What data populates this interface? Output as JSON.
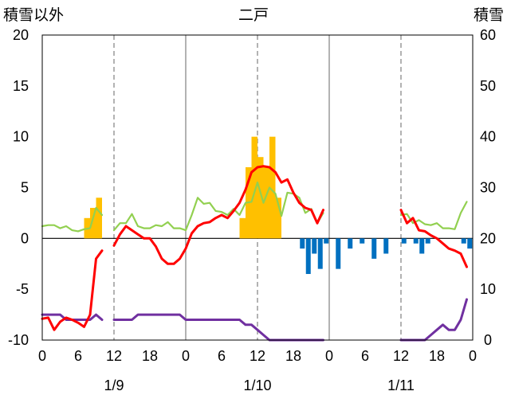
{
  "chart_data": {
    "type": "bar+line",
    "title": "二戸",
    "ylabel_left": "積雪以外",
    "ylabel_right": "積雪",
    "ylim_left": [
      -10,
      20
    ],
    "ylim_right": [
      0,
      60
    ],
    "yticks_left": [
      "20",
      "15",
      "10",
      "5",
      "0",
      "-5",
      "-10"
    ],
    "yticks_right": [
      "60",
      "50",
      "40",
      "30",
      "20",
      "10",
      "0"
    ],
    "x_range_hours": [
      0,
      72
    ],
    "x_ticks": [
      {
        "h": 0,
        "label": "0"
      },
      {
        "h": 6,
        "label": "6"
      },
      {
        "h": 12,
        "label": "12"
      },
      {
        "h": 18,
        "label": "18"
      },
      {
        "h": 24,
        "label": "0"
      },
      {
        "h": 30,
        "label": "6"
      },
      {
        "h": 36,
        "label": "12"
      },
      {
        "h": 42,
        "label": "18"
      },
      {
        "h": 48,
        "label": "0"
      },
      {
        "h": 54,
        "label": "6"
      },
      {
        "h": 60,
        "label": "12"
      },
      {
        "h": 66,
        "label": "18"
      },
      {
        "h": 72,
        "label": "0"
      }
    ],
    "date_labels": [
      {
        "h": 12,
        "label": "1/9"
      },
      {
        "h": 36,
        "label": "1/10"
      },
      {
        "h": 60,
        "label": "1/11"
      }
    ],
    "colors": {
      "precip_bars": "#FFC000",
      "snow_change_bars": "#0070C0",
      "temperature": "#FF0000",
      "snow_depth": "#92D050",
      "wind_line": "#7030A0"
    },
    "precip_bars": [
      [
        7.5,
        2
      ],
      [
        8.5,
        3
      ],
      [
        9.5,
        4
      ],
      [
        33.5,
        2
      ],
      [
        34.5,
        7
      ],
      [
        35.5,
        10
      ],
      [
        36.5,
        8
      ],
      [
        37.5,
        7
      ],
      [
        38.5,
        10
      ],
      [
        39.5,
        4
      ]
    ],
    "snow_change_bars": [
      [
        43.5,
        -1
      ],
      [
        44.5,
        -3.5
      ],
      [
        45.5,
        -1.5
      ],
      [
        46.5,
        -3
      ],
      [
        47.5,
        -0.5
      ],
      [
        49.5,
        -3
      ],
      [
        51.5,
        -1
      ],
      [
        53.5,
        -0.5
      ],
      [
        55.5,
        -2
      ],
      [
        57.5,
        -1.5
      ],
      [
        60.5,
        -0.5
      ],
      [
        62.5,
        -0.5
      ],
      [
        63.5,
        -1.5
      ],
      [
        64.5,
        -0.5
      ],
      [
        70.5,
        -0.5
      ],
      [
        71.5,
        -1
      ]
    ],
    "snow_depth_series": [
      [
        [
          0,
          1.2
        ],
        [
          1,
          1.3
        ],
        [
          2,
          1.3
        ],
        [
          3,
          1.0
        ],
        [
          4,
          1.2
        ],
        [
          5,
          0.8
        ],
        [
          6,
          0.7
        ],
        [
          7,
          0.9
        ],
        [
          8,
          1.0
        ],
        [
          9,
          3.0
        ],
        [
          10,
          2.3
        ]
      ],
      [
        [
          12,
          0.8
        ],
        [
          13,
          1.5
        ],
        [
          14,
          1.5
        ],
        [
          15,
          2.4
        ],
        [
          16,
          1.2
        ],
        [
          17,
          1.0
        ],
        [
          18,
          1.0
        ],
        [
          19,
          1.3
        ],
        [
          20,
          1.2
        ],
        [
          21,
          1.6
        ],
        [
          22,
          1.0
        ],
        [
          23,
          1.0
        ],
        [
          24,
          0.8
        ],
        [
          25,
          2.3
        ],
        [
          26,
          4.0
        ],
        [
          27,
          3.4
        ],
        [
          28,
          3.5
        ],
        [
          29,
          2.7
        ],
        [
          30,
          2.6
        ],
        [
          31,
          2.3
        ],
        [
          32,
          2.9
        ],
        [
          33,
          2.3
        ],
        [
          34,
          3.5
        ],
        [
          35,
          3.6
        ],
        [
          36,
          5.5
        ],
        [
          37,
          3.5
        ],
        [
          38,
          5.0
        ],
        [
          39,
          4.4
        ],
        [
          40,
          2.2
        ],
        [
          41,
          4.5
        ],
        [
          42,
          4.4
        ],
        [
          43,
          4.0
        ],
        [
          44,
          2.5
        ],
        [
          45,
          2.9
        ],
        [
          46,
          1.5
        ],
        [
          47,
          2.5
        ]
      ],
      [
        [
          60,
          2.3
        ],
        [
          61,
          2.4
        ],
        [
          62,
          1.5
        ],
        [
          63,
          1.8
        ],
        [
          64,
          1.4
        ],
        [
          65,
          1.3
        ],
        [
          66,
          1.5
        ],
        [
          67,
          1.0
        ],
        [
          68,
          1.0
        ],
        [
          69,
          0.9
        ],
        [
          70,
          2.5
        ],
        [
          71,
          3.6
        ]
      ]
    ],
    "temperature_series": [
      [
        [
          0,
          -7.9
        ],
        [
          1,
          -7.8
        ],
        [
          2,
          -9.0
        ],
        [
          3,
          -8.2
        ],
        [
          4,
          -7.8
        ],
        [
          5,
          -8.0
        ],
        [
          6,
          -8.3
        ],
        [
          7,
          -8.7
        ],
        [
          8,
          -7.5
        ],
        [
          9,
          -2.0
        ],
        [
          10,
          -1.2
        ]
      ],
      [
        [
          12,
          -0.7
        ],
        [
          13,
          0.4
        ],
        [
          14,
          1.2
        ],
        [
          15,
          0.8
        ],
        [
          16,
          0.4
        ],
        [
          17,
          0.0
        ],
        [
          18,
          0.0
        ],
        [
          19,
          -0.8
        ],
        [
          20,
          -2.0
        ],
        [
          21,
          -2.5
        ],
        [
          22,
          -2.5
        ],
        [
          23,
          -2.0
        ],
        [
          24,
          -1.0
        ],
        [
          25,
          0.5
        ],
        [
          26,
          1.2
        ],
        [
          27,
          1.5
        ],
        [
          28,
          1.6
        ],
        [
          29,
          2.0
        ],
        [
          30,
          2.3
        ],
        [
          31,
          2.0
        ],
        [
          32,
          2.7
        ],
        [
          33,
          3.5
        ],
        [
          34,
          4.8
        ],
        [
          35,
          6.5
        ],
        [
          36,
          7.0
        ],
        [
          37,
          7.1
        ],
        [
          38,
          7.0
        ],
        [
          39,
          6.5
        ],
        [
          40,
          5.5
        ],
        [
          41,
          5.8
        ],
        [
          42,
          4.5
        ],
        [
          43,
          3.5
        ],
        [
          44,
          3.0
        ],
        [
          45,
          2.8
        ],
        [
          46,
          1.5
        ],
        [
          47,
          2.8
        ]
      ],
      [
        [
          60,
          2.8
        ],
        [
          61,
          1.5
        ],
        [
          62,
          2.0
        ],
        [
          63,
          0.8
        ],
        [
          64,
          0.7
        ],
        [
          65,
          0.3
        ],
        [
          66,
          0.0
        ],
        [
          67,
          -0.5
        ],
        [
          68,
          -1.0
        ],
        [
          69,
          -1.2
        ],
        [
          70,
          -1.5
        ],
        [
          71,
          -2.8
        ]
      ]
    ],
    "wind_series": [
      [
        [
          0,
          -7.5
        ],
        [
          1,
          -7.5
        ],
        [
          2,
          -7.5
        ],
        [
          3,
          -7.5
        ],
        [
          4,
          -8.0
        ],
        [
          5,
          -8.0
        ],
        [
          6,
          -8.0
        ],
        [
          7,
          -8.0
        ],
        [
          8,
          -8.0
        ],
        [
          9,
          -7.5
        ],
        [
          10,
          -8.0
        ]
      ],
      [
        [
          12,
          -8.0
        ],
        [
          13,
          -8.0
        ],
        [
          14,
          -8.0
        ],
        [
          15,
          -8.0
        ],
        [
          16,
          -7.5
        ],
        [
          17,
          -7.5
        ],
        [
          18,
          -7.5
        ],
        [
          19,
          -7.5
        ],
        [
          20,
          -7.5
        ],
        [
          21,
          -7.5
        ],
        [
          22,
          -7.5
        ],
        [
          23,
          -7.5
        ],
        [
          24,
          -8.0
        ],
        [
          25,
          -8.0
        ],
        [
          26,
          -8.0
        ],
        [
          27,
          -8.0
        ],
        [
          28,
          -8.0
        ],
        [
          29,
          -8.0
        ],
        [
          30,
          -8.0
        ],
        [
          31,
          -8.0
        ],
        [
          32,
          -8.0
        ],
        [
          33,
          -8.0
        ],
        [
          34,
          -8.5
        ],
        [
          35,
          -8.5
        ],
        [
          36,
          -9.0
        ],
        [
          37,
          -9.5
        ],
        [
          38,
          -10.0
        ],
        [
          39,
          -10.0
        ],
        [
          40,
          -10.0
        ],
        [
          41,
          -10.0
        ],
        [
          42,
          -10.0
        ],
        [
          43,
          -10.0
        ],
        [
          44,
          -10.0
        ],
        [
          45,
          -10.0
        ],
        [
          46,
          -10.0
        ],
        [
          47,
          -10.0
        ]
      ],
      [
        [
          60,
          -10.0
        ],
        [
          61,
          -10.0
        ],
        [
          62,
          -10.0
        ],
        [
          63,
          -10.0
        ],
        [
          64,
          -10.0
        ],
        [
          65,
          -9.5
        ],
        [
          66,
          -9.0
        ],
        [
          67,
          -8.5
        ],
        [
          68,
          -9.0
        ],
        [
          69,
          -9.0
        ],
        [
          70,
          -8.0
        ],
        [
          71,
          -6.0
        ]
      ]
    ]
  }
}
